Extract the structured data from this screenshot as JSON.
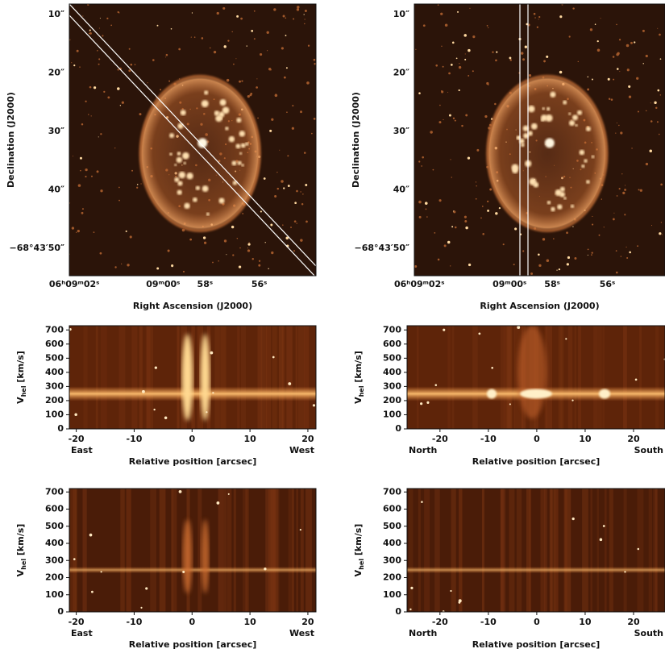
{
  "chart_data": [
    {
      "type": "image",
      "xlabel": "Right Ascension (J2000)",
      "ylabel": "Declination (J2000)",
      "ytick_labels": [
        "10″",
        "20″",
        "30″",
        "40″",
        "−68°43′50″"
      ],
      "xtick_labels": [
        "06ʰ09ᵐ02ˢ",
        "09ᵐ00ˢ",
        "58ˢ",
        "56ˢ"
      ]
    },
    {
      "type": "image",
      "xlabel": "Right Ascension (J2000)",
      "ylabel": "Declination (J2000)",
      "ytick_labels": [
        "10″",
        "20″",
        "30″",
        "40″",
        "−68°43′50″"
      ],
      "xtick_labels": [
        "06ʰ09ᵐ02ˢ",
        "09ᵐ00ˢ",
        "58ˢ",
        "56ˢ"
      ]
    },
    {
      "type": "heatmap",
      "xlabel": "Relative position [arcsec]",
      "ylabel": [
        "V",
        "hel",
        " [km/s]"
      ],
      "xlim": [
        -21.2,
        21.4
      ],
      "ylim": [
        0,
        730
      ],
      "xticks": [
        -20,
        -10,
        0,
        10,
        20
      ],
      "yticks": [
        0,
        100,
        200,
        300,
        400,
        500,
        600,
        700
      ],
      "direction_labels": [
        "East",
        "West"
      ]
    },
    {
      "type": "heatmap",
      "xlabel": "Relative position [arcsec]",
      "ylabel": [
        "V",
        "hel",
        " [km/s]"
      ],
      "xlim": [
        -26.8,
        26.5
      ],
      "ylim": [
        0,
        730
      ],
      "xticks": [
        -20,
        -10,
        0,
        10,
        20
      ],
      "yticks": [
        0,
        100,
        200,
        300,
        400,
        500,
        600,
        700
      ],
      "direction_labels": [
        "North",
        "South"
      ]
    },
    {
      "type": "heatmap",
      "xlabel": "Relative position [arcsec]",
      "ylabel": [
        "V",
        "hel",
        " [km/s]"
      ],
      "xlim": [
        -21.2,
        21.4
      ],
      "ylim": [
        0,
        720
      ],
      "xticks": [
        -20,
        -10,
        0,
        10,
        20
      ],
      "yticks": [
        0,
        100,
        200,
        300,
        400,
        500,
        600,
        700
      ],
      "direction_labels": [
        "East",
        "West"
      ]
    },
    {
      "type": "heatmap",
      "xlabel": "Relative position [arcsec]",
      "ylabel": [
        "V",
        "hel",
        " [km/s]"
      ],
      "xlim": [
        -26.8,
        26.5
      ],
      "ylim": [
        0,
        720
      ],
      "xticks": [
        -20,
        -10,
        0,
        10,
        20
      ],
      "yticks": [
        0,
        100,
        200,
        300,
        400,
        500,
        600,
        700
      ],
      "direction_labels": [
        "North",
        "South"
      ]
    }
  ]
}
